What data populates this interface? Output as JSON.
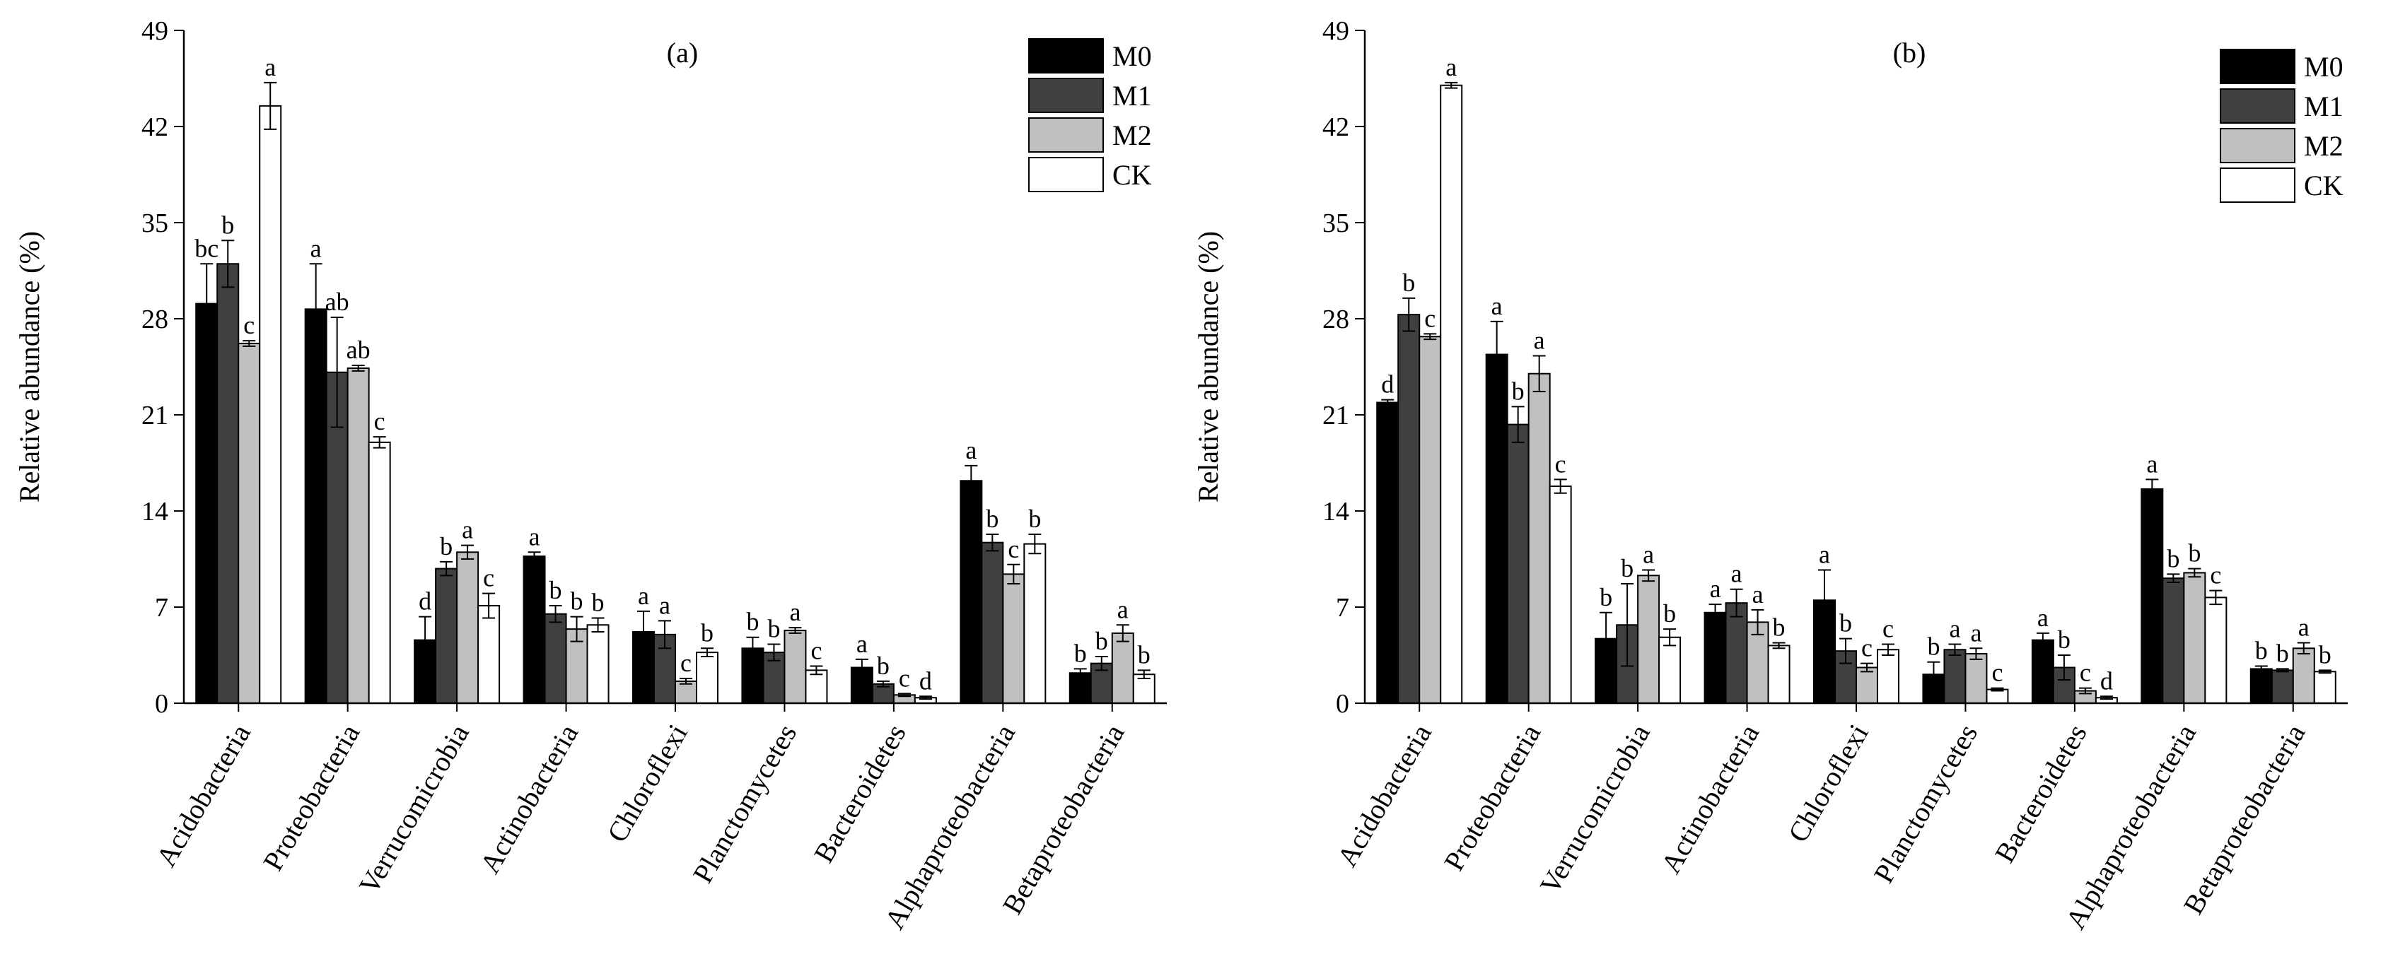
{
  "chart_data": [
    {
      "type": "bar",
      "title": "(a)",
      "xlabel": "",
      "ylabel": "Relative abundance (%)",
      "ylim": [
        0,
        49
      ],
      "yticks": [
        0,
        7,
        14,
        21,
        28,
        35,
        42,
        49
      ],
      "legend_position": "top-right",
      "categories": [
        "Acidobacteria",
        "Proteobacteria",
        "Verrucomicrobia",
        "Actinobacteria",
        "Chloroflexi",
        "Planctomycetes",
        "Bacteroidetes",
        "Alphaproteobacteria",
        "Betaproteobacteria"
      ],
      "series": [
        {
          "name": "M0",
          "color": "#000000",
          "values": [
            29.1,
            28.7,
            4.6,
            10.7,
            5.2,
            4.0,
            2.6,
            16.2,
            2.2
          ],
          "errors": [
            2.9,
            3.3,
            1.7,
            0.3,
            1.5,
            0.8,
            0.6,
            1.1,
            0.3
          ],
          "significance": [
            "bc",
            "a",
            "d",
            "a",
            "a",
            "b",
            "a",
            "a",
            "b"
          ]
        },
        {
          "name": "M1",
          "color": "#404040",
          "values": [
            32.0,
            24.1,
            9.8,
            6.5,
            5.0,
            3.7,
            1.4,
            11.7,
            2.9
          ],
          "errors": [
            1.7,
            4.0,
            0.5,
            0.6,
            1.0,
            0.6,
            0.2,
            0.6,
            0.5
          ],
          "significance": [
            "b",
            "ab",
            "b",
            "b",
            "a",
            "b",
            "b",
            "b",
            "b"
          ]
        },
        {
          "name": "M2",
          "color": "#c0c0c0",
          "values": [
            26.2,
            24.4,
            11.0,
            5.4,
            1.6,
            5.3,
            0.6,
            9.4,
            5.1
          ],
          "errors": [
            0.2,
            0.2,
            0.5,
            0.9,
            0.2,
            0.2,
            0.1,
            0.7,
            0.6
          ],
          "significance": [
            "c",
            "ab",
            "a",
            "b",
            "c",
            "a",
            "c",
            "c",
            "a"
          ]
        },
        {
          "name": "CK",
          "color": "#ffffff",
          "values": [
            43.5,
            19.0,
            7.1,
            5.7,
            3.7,
            2.4,
            0.4,
            11.6,
            2.1
          ],
          "errors": [
            1.7,
            0.4,
            0.9,
            0.5,
            0.3,
            0.3,
            0.1,
            0.7,
            0.3
          ],
          "significance": [
            "a",
            "c",
            "c",
            "b",
            "b",
            "c",
            "d",
            "b",
            "b"
          ]
        }
      ]
    },
    {
      "type": "bar",
      "title": "(b)",
      "xlabel": "",
      "ylabel": "Relative abundance (%)",
      "ylim": [
        0,
        49
      ],
      "yticks": [
        0,
        7,
        14,
        21,
        28,
        35,
        42,
        49
      ],
      "legend_position": "top-right",
      "categories": [
        "Acidobacteria",
        "Proteobacteria",
        "Verrucomicrobia",
        "Actinobacteria",
        "Chloroflexi",
        "Planctomycetes",
        "Bacteroidetes",
        "Alphaproteobacteria",
        "Betaproteobacteria"
      ],
      "series": [
        {
          "name": "M0",
          "color": "#000000",
          "values": [
            21.9,
            25.4,
            4.7,
            6.6,
            7.5,
            2.1,
            4.6,
            15.6,
            2.5
          ],
          "errors": [
            0.2,
            2.4,
            1.9,
            0.6,
            2.2,
            0.9,
            0.5,
            0.7,
            0.2
          ],
          "significance": [
            "d",
            "a",
            "b",
            "a",
            "a",
            "b",
            "a",
            "a",
            "b"
          ]
        },
        {
          "name": "M1",
          "color": "#404040",
          "values": [
            28.3,
            20.3,
            5.7,
            7.3,
            3.8,
            3.9,
            2.6,
            9.1,
            2.4
          ],
          "errors": [
            1.2,
            1.3,
            3.0,
            1.0,
            0.9,
            0.4,
            0.9,
            0.3,
            0.1
          ],
          "significance": [
            "b",
            "b",
            "b",
            "a",
            "b",
            "a",
            "b",
            "b",
            "b"
          ]
        },
        {
          "name": "M2",
          "color": "#c0c0c0",
          "values": [
            26.7,
            24.0,
            9.3,
            5.9,
            2.6,
            3.6,
            0.9,
            9.5,
            4.0
          ],
          "errors": [
            0.2,
            1.3,
            0.4,
            0.9,
            0.3,
            0.4,
            0.2,
            0.3,
            0.4
          ],
          "significance": [
            "c",
            "a",
            "a",
            "a",
            "c",
            "a",
            "c",
            "b",
            "a"
          ]
        },
        {
          "name": "CK",
          "color": "#ffffff",
          "values": [
            45.0,
            15.8,
            4.8,
            4.2,
            3.9,
            1.0,
            0.4,
            7.7,
            2.3
          ],
          "errors": [
            0.2,
            0.5,
            0.6,
            0.2,
            0.4,
            0.1,
            0.1,
            0.5,
            0.1
          ],
          "significance": [
            "a",
            "c",
            "b",
            "b",
            "c",
            "c",
            "d",
            "c",
            "b"
          ]
        }
      ]
    }
  ]
}
